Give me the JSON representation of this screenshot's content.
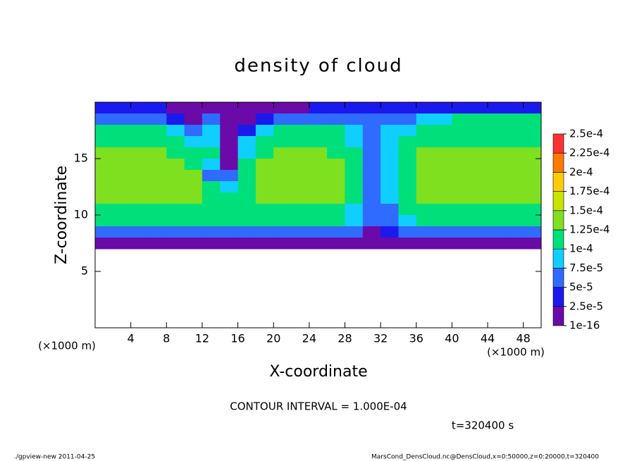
{
  "chart_data": {
    "type": "heatmap",
    "title": "density of cloud",
    "xlabel": "X-coordinate",
    "ylabel": "Z-coordinate",
    "xunit": "(×1000 m)",
    "yunit": "(×1000 m)",
    "note": "CONTOUR INTERVAL = 1.000E-04",
    "time": "t=320400 s",
    "footer_left": "./gpview-new  2011-04-25",
    "footer_right": "MarsCond_DensCloud.nc@DensCloud,x=0:50000,z=0:20000,t=320400",
    "xlim": [
      0,
      50
    ],
    "ylim": [
      0,
      20
    ],
    "xticks": [
      4,
      8,
      12,
      16,
      20,
      24,
      28,
      32,
      36,
      40,
      44,
      48
    ],
    "yticks": [
      5,
      10,
      15
    ],
    "x": [
      1,
      3,
      5,
      7,
      9,
      11,
      13,
      15,
      17,
      19,
      21,
      23,
      25,
      27,
      29,
      31,
      33,
      35,
      37,
      39,
      41,
      43,
      45,
      47,
      49
    ],
    "z": [
      19.5,
      18.5,
      17.5,
      16.5,
      15.5,
      14.5,
      13.5,
      12.5,
      11.5,
      10.5,
      9.5,
      8.5,
      7.5
    ],
    "values": [
      [
        3e-05,
        3e-05,
        3e-05,
        3e-05,
        2e-05,
        0,
        0,
        0,
        0,
        0,
        0,
        2e-05,
        3e-05,
        3e-05,
        3e-05,
        3e-05,
        3e-05,
        3e-05,
        3e-05,
        3e-05,
        3e-05,
        3e-05,
        3e-05,
        3e-05,
        3e-05
      ],
      [
        7e-05,
        7e-05,
        6e-05,
        6e-05,
        4e-05,
        1e-05,
        6e-05,
        2e-05,
        0,
        4e-05,
        6e-05,
        7e-05,
        7e-05,
        7e-05,
        6e-05,
        5e-05,
        6e-05,
        7e-05,
        8e-05,
        9e-05,
        0.0001,
        0.0001,
        0.0001,
        0.0001,
        0.0001
      ],
      [
        0.00011,
        0.00011,
        0.0001,
        0.0001,
        8e-05,
        5e-05,
        9e-05,
        1e-05,
        4e-05,
        8e-05,
        0.0001,
        0.00011,
        0.00011,
        0.0001,
        8e-05,
        7e-05,
        8e-05,
        9e-05,
        0.00011,
        0.00011,
        0.00011,
        0.00011,
        0.00011,
        0.00011,
        0.00011
      ],
      [
        0.00012,
        0.00012,
        0.00012,
        0.00011,
        0.0001,
        9e-05,
        9e-05,
        2e-05,
        8e-05,
        0.00011,
        0.00012,
        0.00012,
        0.00012,
        0.00011,
        9e-05,
        7e-05,
        8e-05,
        0.00011,
        0.00012,
        0.00012,
        0.00012,
        0.00012,
        0.00012,
        0.00012,
        0.00012
      ],
      [
        0.00013,
        0.00013,
        0.00013,
        0.00013,
        0.00012,
        0.00011,
        0.0001,
        1e-05,
        9e-05,
        0.00012,
        0.00013,
        0.00013,
        0.00013,
        0.00012,
        0.0001,
        7e-05,
        8e-05,
        0.00012,
        0.00013,
        0.00013,
        0.00013,
        0.00013,
        0.00013,
        0.00013,
        0.00013
      ],
      [
        0.00014,
        0.00014,
        0.00014,
        0.00014,
        0.00013,
        0.00012,
        8e-05,
        2e-05,
        0.0001,
        0.00013,
        0.00014,
        0.00014,
        0.00014,
        0.00013,
        0.00011,
        7e-05,
        8e-05,
        0.00012,
        0.00014,
        0.00014,
        0.00014,
        0.00014,
        0.00014,
        0.00014,
        0.00014
      ],
      [
        0.00014,
        0.00014,
        0.00014,
        0.00014,
        0.00014,
        0.00013,
        7e-05,
        5e-05,
        0.00011,
        0.00013,
        0.00014,
        0.00014,
        0.00014,
        0.00013,
        0.00011,
        7e-05,
        8e-05,
        0.00012,
        0.00014,
        0.00014,
        0.00014,
        0.00014,
        0.00014,
        0.00014,
        0.00014
      ],
      [
        0.00014,
        0.00014,
        0.00014,
        0.00014,
        0.00014,
        0.00013,
        0.00011,
        8e-05,
        0.00012,
        0.00014,
        0.00014,
        0.00014,
        0.00014,
        0.00013,
        0.00011,
        7e-05,
        8e-05,
        0.00012,
        0.00014,
        0.00014,
        0.00014,
        0.00014,
        0.00014,
        0.00014,
        0.00014
      ],
      [
        0.00013,
        0.00013,
        0.00013,
        0.00013,
        0.00013,
        0.00013,
        0.00012,
        0.00011,
        0.00012,
        0.00013,
        0.00013,
        0.00013,
        0.00013,
        0.00013,
        0.0001,
        7e-05,
        8e-05,
        0.00012,
        0.00013,
        0.00013,
        0.00013,
        0.00013,
        0.00013,
        0.00013,
        0.00013
      ],
      [
        0.00012,
        0.00012,
        0.00012,
        0.00012,
        0.00012,
        0.00012,
        0.00012,
        0.00012,
        0.00012,
        0.00012,
        0.00012,
        0.00012,
        0.00012,
        0.00012,
        9e-05,
        6e-05,
        7e-05,
        0.00011,
        0.00012,
        0.00012,
        0.00012,
        0.00012,
        0.00012,
        0.00012,
        0.00012
      ],
      [
        0.0001,
        0.0001,
        0.0001,
        0.0001,
        0.0001,
        0.0001,
        0.0001,
        0.0001,
        0.0001,
        0.0001,
        0.0001,
        0.0001,
        0.0001,
        0.0001,
        8e-05,
        5e-05,
        6e-05,
        9e-05,
        0.0001,
        0.0001,
        0.0001,
        0.0001,
        0.0001,
        0.0001,
        0.0001
      ],
      [
        6e-05,
        6e-05,
        6e-05,
        6e-05,
        6e-05,
        6e-05,
        6e-05,
        6e-05,
        6e-05,
        6e-05,
        6e-05,
        6e-05,
        6e-05,
        6e-05,
        5e-05,
        2e-05,
        4e-05,
        6e-05,
        6e-05,
        6e-05,
        6e-05,
        6e-05,
        6e-05,
        6e-05,
        6e-05
      ],
      [
        2e-05,
        2e-05,
        2e-05,
        2e-05,
        2e-05,
        2e-05,
        2e-05,
        2e-05,
        2e-05,
        2e-05,
        2e-05,
        2e-05,
        2e-05,
        1e-05,
        0,
        0,
        1e-05,
        2e-05,
        2e-05,
        2e-05,
        2e-05,
        2e-05,
        2e-05,
        2e-05,
        2e-05
      ]
    ],
    "levels": [
      1e-16,
      {
        "value": 2.5e-05,
        "label": "2.5e-5"
      },
      {
        "value": 5e-05,
        "label": "5e-5"
      },
      {
        "value": 7.5e-05,
        "label": "7.5e-5"
      },
      {
        "value": 0.0001,
        "label": "1e-4"
      },
      {
        "value": 0.000125,
        "label": "1.25e-4"
      },
      {
        "value": 0.00015,
        "label": "1.5e-4"
      },
      {
        "value": 0.000175,
        "label": "1.75e-4"
      },
      {
        "value": 0.0002,
        "label": "2e-4"
      },
      {
        "value": 0.000225,
        "label": "2.25e-4"
      },
      {
        "value": 0.00025,
        "label": "2.5e-4"
      }
    ],
    "colors": [
      "#6a0aa8",
      "#1a1aee",
      "#2f6bff",
      "#10cfff",
      "#00e07a",
      "#7fe020",
      "#c8e400",
      "#ffcc00",
      "#ff7a00",
      "#ff3030"
    ]
  }
}
